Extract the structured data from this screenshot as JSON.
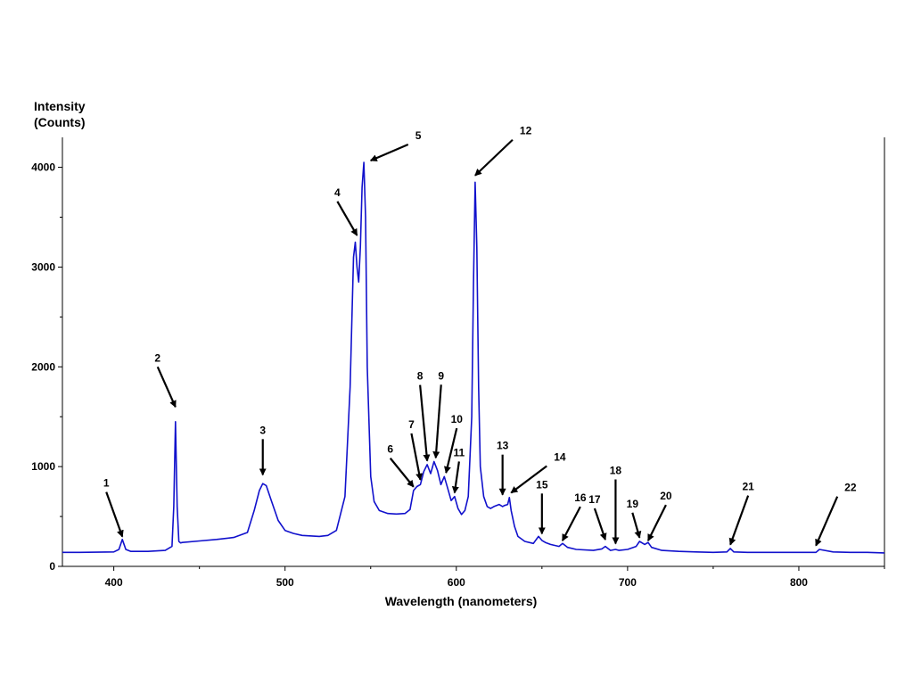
{
  "chart_data": {
    "type": "line",
    "xlabel": "Wavelength (nanometers)",
    "ylabel_line1": "Intensity",
    "ylabel_line2": "(Counts)",
    "xlim": [
      370,
      850
    ],
    "ylim": [
      0,
      4300
    ],
    "x_ticks": [
      400,
      500,
      600,
      700,
      800
    ],
    "y_ticks": [
      0,
      1000,
      2000,
      3000,
      4000
    ],
    "grid": false,
    "series": [
      {
        "color": "#1111cc",
        "x": [
          370,
          380,
          390,
          400,
          403,
          405,
          407,
          410,
          420,
          430,
          434,
          435,
          436,
          437,
          438,
          439,
          440,
          450,
          460,
          470,
          478,
          482,
          485,
          487,
          489,
          492,
          496,
          500,
          505,
          510,
          520,
          525,
          530,
          535,
          538,
          540,
          541,
          542,
          543,
          544,
          545,
          546,
          547,
          548,
          550,
          552,
          555,
          560,
          565,
          570,
          573,
          575,
          577,
          579,
          581,
          583,
          585,
          587,
          589,
          591,
          593,
          595,
          597,
          599,
          601,
          603,
          605,
          607,
          609,
          610,
          611,
          612,
          613,
          614,
          616,
          618,
          620,
          622,
          625,
          627,
          628,
          630,
          631,
          632,
          634,
          636,
          640,
          645,
          648,
          650,
          652,
          655,
          660,
          662,
          665,
          670,
          680,
          685,
          687,
          690,
          693,
          695,
          700,
          705,
          707,
          709,
          710,
          712,
          714,
          720,
          730,
          740,
          750,
          758,
          760,
          762,
          770,
          780,
          790,
          800,
          808,
          810,
          812,
          820,
          830,
          840,
          850
        ],
        "y": [
          140,
          140,
          142,
          145,
          170,
          270,
          170,
          150,
          150,
          160,
          200,
          600,
          1450,
          600,
          250,
          235,
          240,
          255,
          270,
          290,
          340,
          560,
          760,
          830,
          810,
          660,
          460,
          360,
          330,
          310,
          300,
          310,
          360,
          700,
          1800,
          3100,
          3250,
          3000,
          2850,
          3200,
          3800,
          4050,
          3500,
          2000,
          900,
          650,
          560,
          530,
          525,
          530,
          570,
          760,
          800,
          820,
          950,
          1020,
          930,
          1050,
          960,
          820,
          900,
          780,
          660,
          700,
          580,
          520,
          560,
          700,
          1500,
          2800,
          3850,
          3200,
          1800,
          1000,
          700,
          600,
          580,
          600,
          620,
          600,
          610,
          620,
          690,
          560,
          400,
          300,
          250,
          230,
          300,
          260,
          240,
          220,
          200,
          230,
          190,
          170,
          160,
          175,
          200,
          160,
          170,
          160,
          170,
          200,
          250,
          230,
          220,
          240,
          190,
          160,
          150,
          145,
          140,
          145,
          180,
          145,
          140,
          140,
          140,
          140,
          140,
          140,
          170,
          145,
          140,
          140,
          135
        ]
      }
    ],
    "annotations": [
      {
        "label": "1",
        "x": 405,
        "y": 280
      },
      {
        "label": "2",
        "x": 436,
        "y": 1580
      },
      {
        "label": "3",
        "x": 487,
        "y": 900
      },
      {
        "label": "4",
        "x": 542,
        "y": 3300
      },
      {
        "label": "5",
        "x": 550,
        "y": 4050
      },
      {
        "label": "6",
        "x": 575,
        "y": 780
      },
      {
        "label": "7",
        "x": 579,
        "y": 850
      },
      {
        "label": "8",
        "x": 583,
        "y": 1040
      },
      {
        "label": "9",
        "x": 588,
        "y": 1070
      },
      {
        "label": "10",
        "x": 594,
        "y": 920
      },
      {
        "label": "11",
        "x": 599,
        "y": 720
      },
      {
        "label": "12",
        "x": 611,
        "y": 3900
      },
      {
        "label": "13",
        "x": 627,
        "y": 700
      },
      {
        "label": "14",
        "x": 632,
        "y": 720
      },
      {
        "label": "15",
        "x": 650,
        "y": 310
      },
      {
        "label": "16",
        "x": 662,
        "y": 240
      },
      {
        "label": "17",
        "x": 687,
        "y": 250
      },
      {
        "label": "18",
        "x": 693,
        "y": 210
      },
      {
        "label": "19",
        "x": 707,
        "y": 270
      },
      {
        "label": "20",
        "x": 712,
        "y": 240
      },
      {
        "label": "21",
        "x": 760,
        "y": 200
      },
      {
        "label": "22",
        "x": 810,
        "y": 190
      }
    ]
  }
}
